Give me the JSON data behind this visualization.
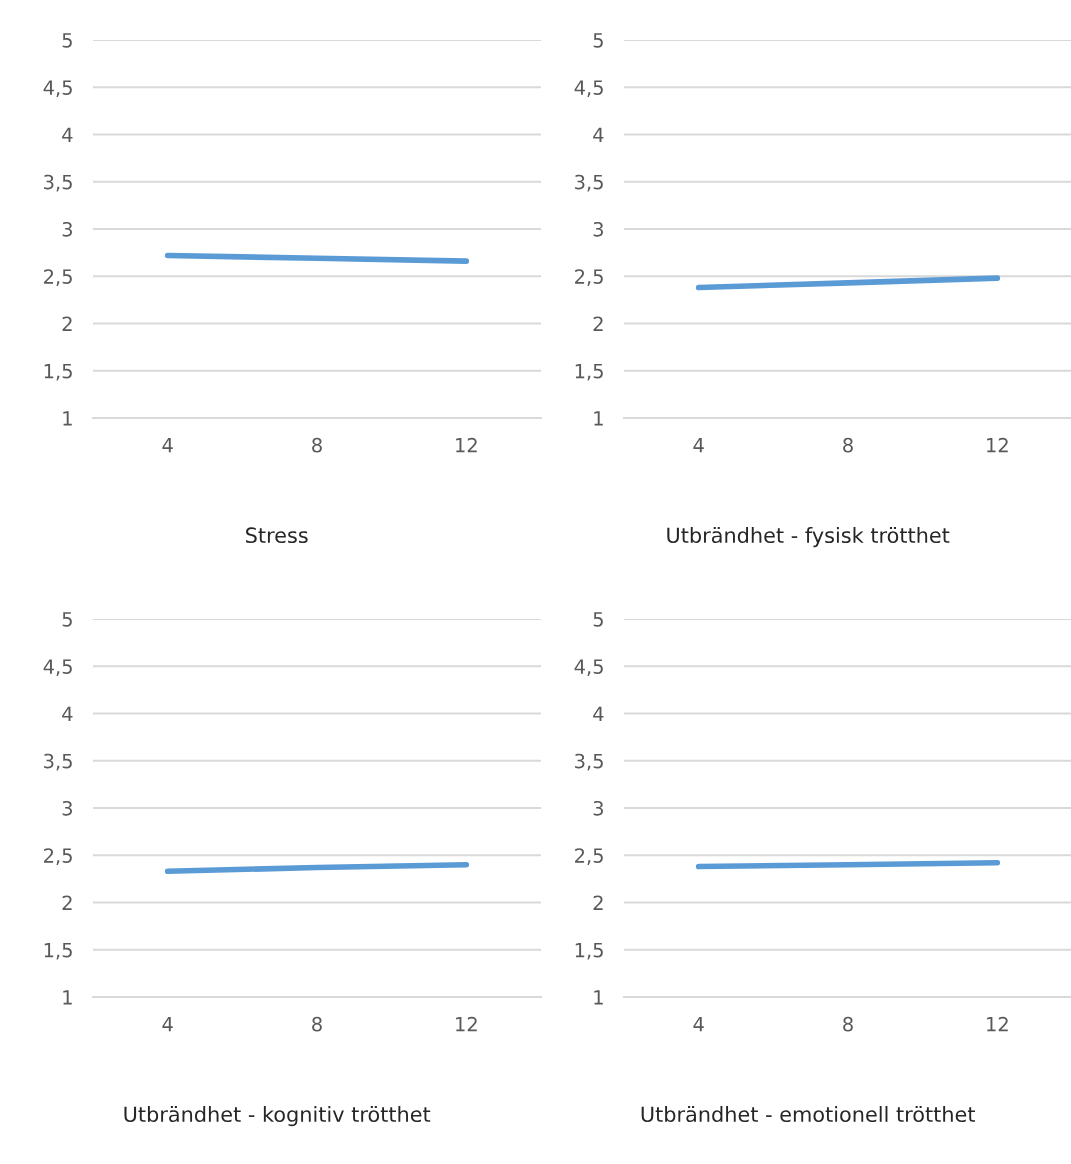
{
  "chart_data": [
    {
      "type": "line",
      "title": "Stress",
      "categories": [
        "4",
        "8",
        "12"
      ],
      "series": [
        {
          "color": "#5b9bd5",
          "values": [
            2.72,
            2.69,
            2.66
          ]
        }
      ],
      "ylim": [
        1,
        5
      ],
      "yticks": [
        1,
        {
          "value": 1.5,
          "label": "1,5"
        },
        2,
        {
          "value": 2.5,
          "label": "2,5"
        },
        3,
        {
          "value": 3.5,
          "label": "3,5"
        },
        4,
        {
          "value": 4.5,
          "label": "4,5"
        },
        5
      ],
      "grid": "y",
      "marker": "none",
      "line_style": "solid"
    },
    {
      "type": "line",
      "title": "Utbrändhet - fysisk trötthet",
      "categories": [
        "4",
        "8",
        "12"
      ],
      "series": [
        {
          "color": "#5b9bd5",
          "values": [
            2.38,
            2.43,
            2.48
          ]
        }
      ],
      "ylim": [
        1,
        5
      ],
      "yticks": [
        1,
        {
          "value": 1.5,
          "label": "1,5"
        },
        2,
        {
          "value": 2.5,
          "label": "2,5"
        },
        3,
        {
          "value": 3.5,
          "label": "3,5"
        },
        4,
        {
          "value": 4.5,
          "label": "4,5"
        },
        5
      ],
      "grid": "y",
      "marker": "none",
      "line_style": "solid"
    },
    {
      "type": "line",
      "title": "Utbrändhet - kognitiv trötthet",
      "categories": [
        "4",
        "8",
        "12"
      ],
      "series": [
        {
          "color": "#5b9bd5",
          "values": [
            2.33,
            2.37,
            2.4
          ]
        }
      ],
      "ylim": [
        1,
        5
      ],
      "yticks": [
        1,
        {
          "value": 1.5,
          "label": "1,5"
        },
        2,
        {
          "value": 2.5,
          "label": "2,5"
        },
        3,
        {
          "value": 3.5,
          "label": "3,5"
        },
        4,
        {
          "value": 4.5,
          "label": "4,5"
        },
        5
      ],
      "grid": "y",
      "marker": "none",
      "line_style": "solid"
    },
    {
      "type": "line",
      "title": "Utbrändhet - emotionell trötthet",
      "categories": [
        "4",
        "8",
        "12"
      ],
      "series": [
        {
          "color": "#5b9bd5",
          "values": [
            2.38,
            2.4,
            2.42
          ]
        }
      ],
      "ylim": [
        1,
        5
      ],
      "yticks": [
        1,
        {
          "value": 1.5,
          "label": "1,5"
        },
        2,
        {
          "value": 2.5,
          "label": "2,5"
        },
        3,
        {
          "value": 3.5,
          "label": "3,5"
        },
        4,
        {
          "value": 4.5,
          "label": "4,5"
        },
        5
      ],
      "grid": "y",
      "marker": "none",
      "line_style": "solid"
    }
  ]
}
